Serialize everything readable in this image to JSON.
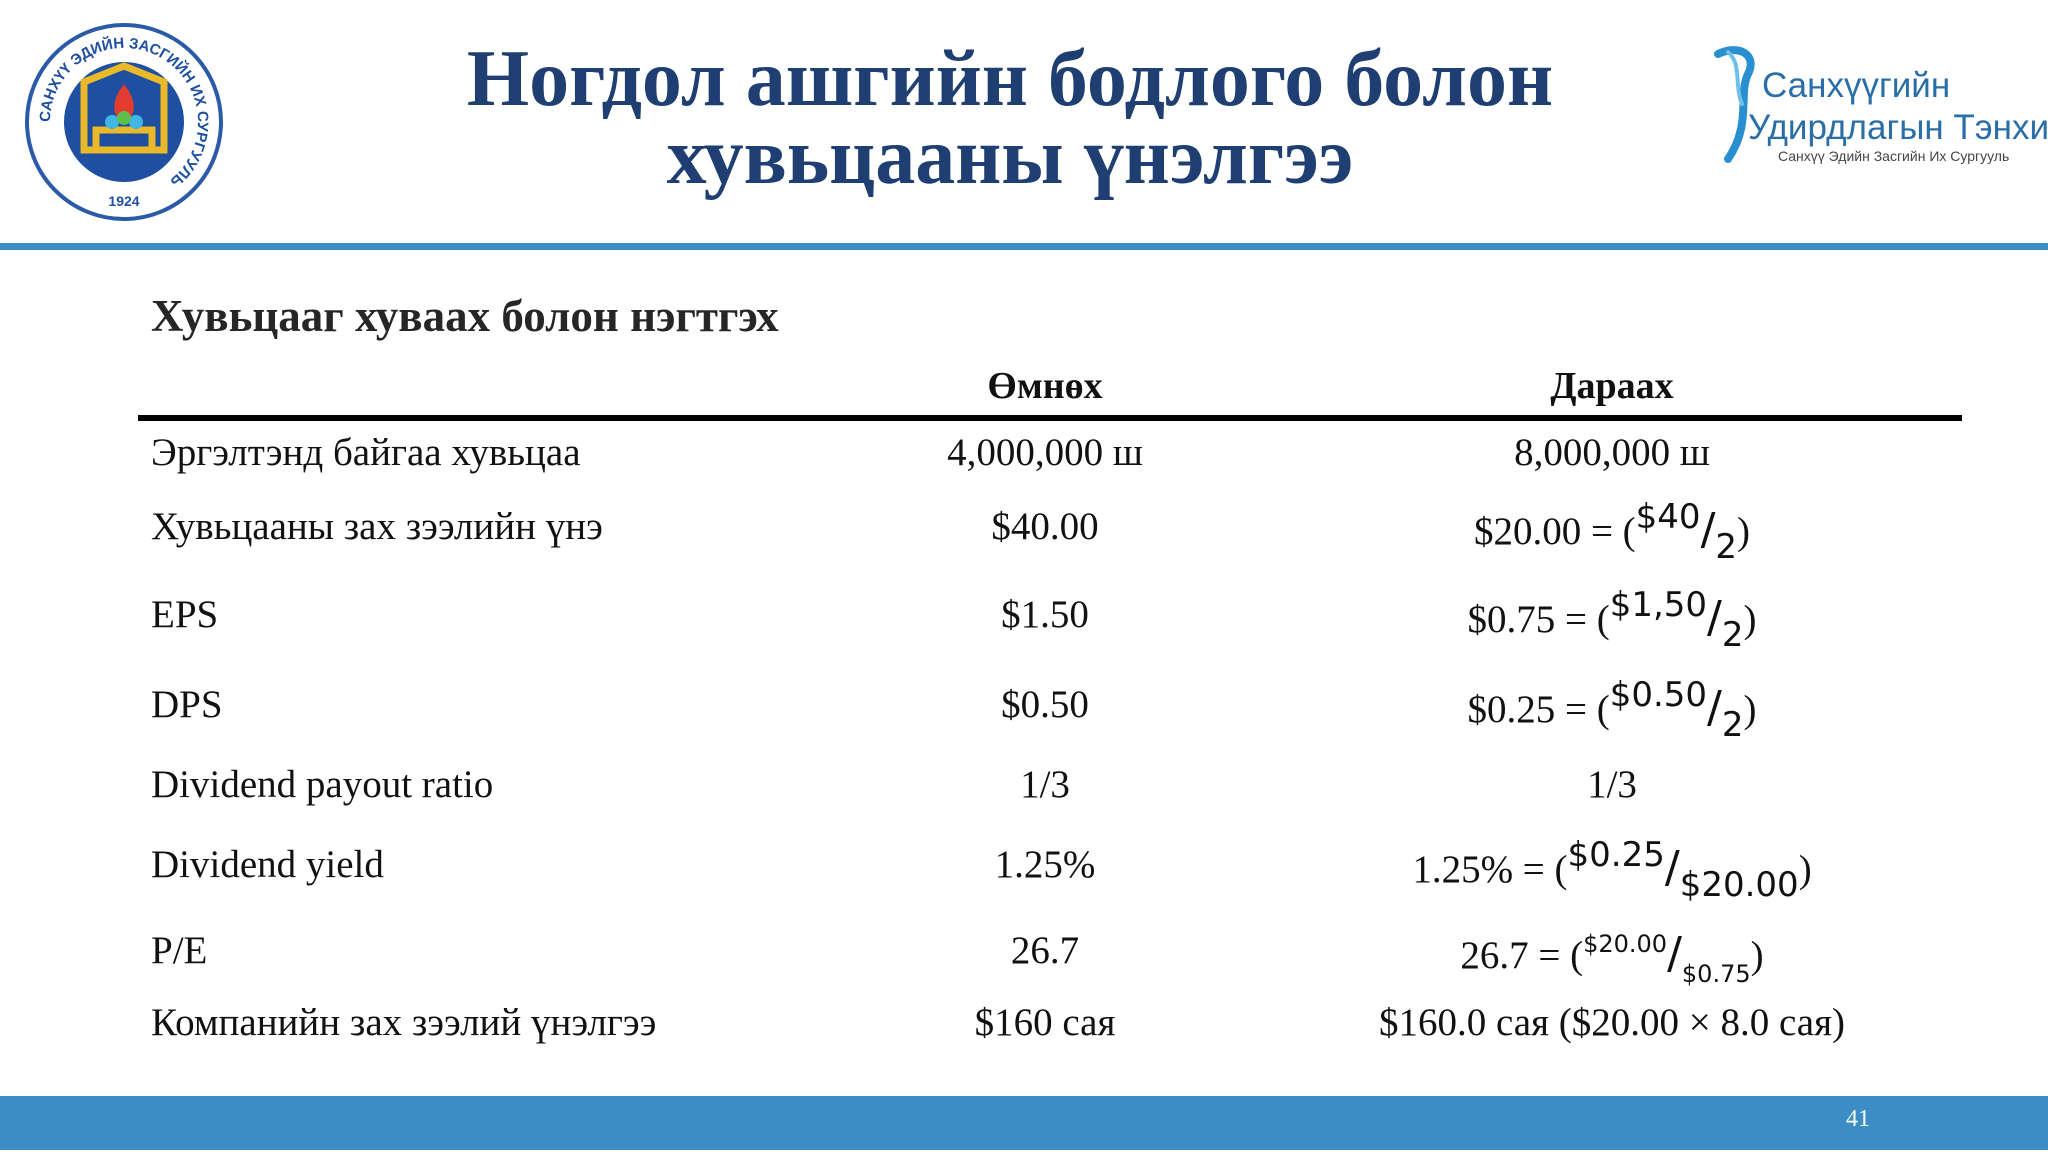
{
  "slide": {
    "title_line1": "Ногдол ашгийн бодлого болон",
    "title_line2": "хувьцааны үнэлгээ",
    "section_title": "Хувьцааг хуваах болон нэгтгэх",
    "page_number": "41"
  },
  "logos": {
    "left": {
      "ring_text": "САНХҮҮ ЭДИЙН ЗАСГИЙН ИХ СУРГУУЛЬ",
      "year": "1924",
      "colors": {
        "ring": "#2a5aa8",
        "inner": "#1e4fa0",
        "gold": "#e9b92a",
        "flame": "#e23b2f"
      }
    },
    "right": {
      "line1": "Санхүүгийн",
      "line2": "Удирдлагын Тэнхим",
      "line3": "Санхүү Эдийн Засгийн Их Сургууль",
      "color": "#2a6ea8"
    }
  },
  "table": {
    "headers": {
      "before": "Өмнөх",
      "after": "Дараах"
    },
    "rows": [
      {
        "label": "Эргэлтэнд байгаа хувьцаа",
        "before": "4,000,000 ш",
        "after_plain": "8,000,000 ш"
      },
      {
        "label": "Хувьцааны зах зээлийн үнэ",
        "before": "$40.00",
        "after_lead": "$20.00 = (",
        "after_num": "$40",
        "after_den": "2",
        "after_close": ")"
      },
      {
        "label": "EPS",
        "before": "$1.50",
        "after_lead": "$0.75 = (",
        "after_num": "$1,50",
        "after_den": "2",
        "after_close": ")"
      },
      {
        "label": "DPS",
        "before": "$0.50",
        "after_lead": "$0.25 = (",
        "after_num": "$0.50",
        "after_den": "2",
        "after_close": ")"
      },
      {
        "label": "Dividend payout ratio",
        "before": "1/3",
        "after_plain": "1/3"
      },
      {
        "label": "Dividend yield",
        "before": "1.25%",
        "after_lead": "1.25% = (",
        "after_num": "$0.25",
        "after_den": "$20.00",
        "after_close": ")"
      },
      {
        "label": "P/E",
        "before": "26.7",
        "after_lead": "26.7 = (",
        "after_num": "$20.00",
        "after_den": "$0.75",
        "after_close": ")"
      },
      {
        "label": "Компанийн зах зээлий үнэлгээ",
        "before": "$160 сая",
        "after_plain": "$160.0 сая  ($20.00 × 8.0 сая)"
      }
    ]
  },
  "colors": {
    "title": "#1f3f73",
    "accent_bar": "#3c8dc6"
  }
}
